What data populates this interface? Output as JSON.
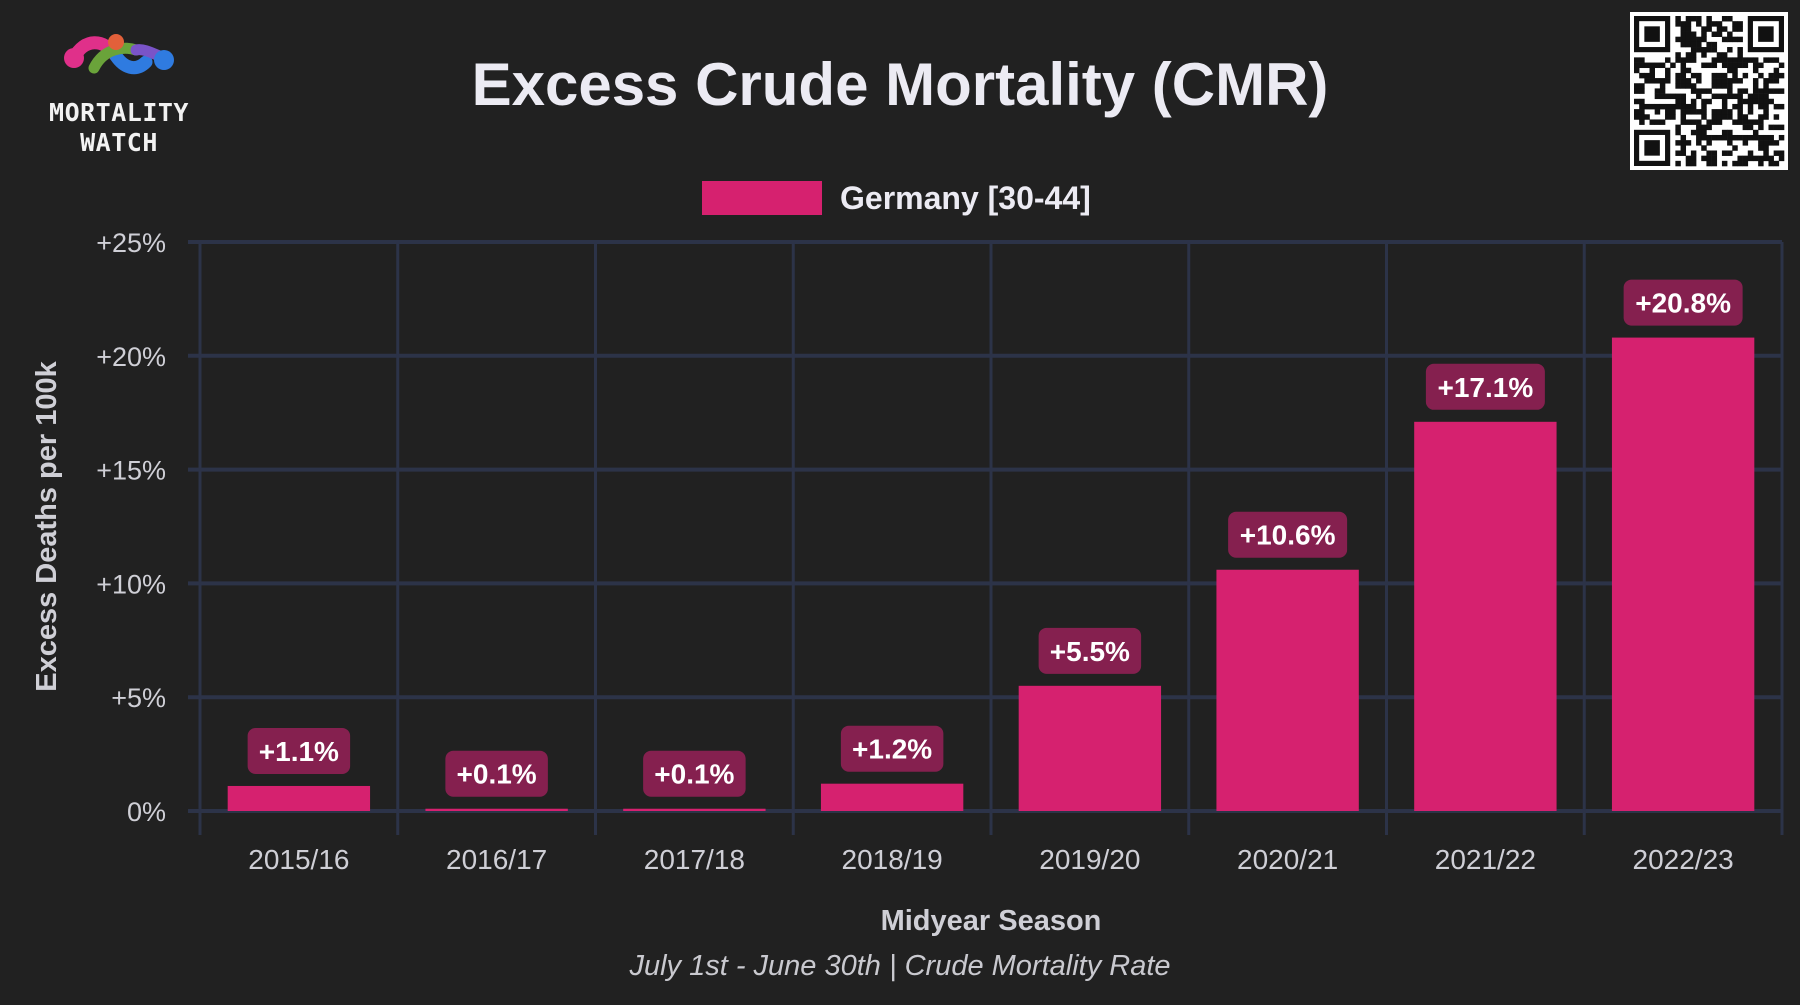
{
  "logo": {
    "line1": "MORTALITY",
    "line2": "WATCH"
  },
  "qr_code": "qr-code",
  "colors": {
    "background": "#212121",
    "bar": "#d6216f",
    "label_bg": "#85204f",
    "grid": "#2c3348",
    "text": "#e6e6ee"
  },
  "chart_data": {
    "type": "bar",
    "title": "Excess Crude Mortality (CMR)",
    "xlabel": "Midyear Season",
    "ylabel": "Excess Deaths per 100k",
    "subtitle": "July 1st - June 30th | Crude Mortality Rate",
    "legend_position": "top-center",
    "grid": true,
    "categories": [
      "2015/16",
      "2016/17",
      "2017/18",
      "2018/19",
      "2019/20",
      "2020/21",
      "2021/22",
      "2022/23"
    ],
    "series": [
      {
        "name": "Germany [30-44]",
        "values": [
          1.1,
          0.1,
          0.1,
          1.2,
          5.5,
          10.6,
          17.1,
          20.8
        ],
        "labels": [
          "+1.1%",
          "+0.1%",
          "+0.1%",
          "+1.2%",
          "+5.5%",
          "+10.6%",
          "+17.1%",
          "+20.8%"
        ]
      }
    ],
    "ylim": [
      0,
      25
    ],
    "yticks": [
      {
        "value": 0,
        "label": "0%"
      },
      {
        "value": 5,
        "label": "+5%"
      },
      {
        "value": 10,
        "label": "+10%"
      },
      {
        "value": 15,
        "label": "+15%"
      },
      {
        "value": 20,
        "label": "+20%"
      },
      {
        "value": 25,
        "label": "+25%"
      }
    ]
  }
}
